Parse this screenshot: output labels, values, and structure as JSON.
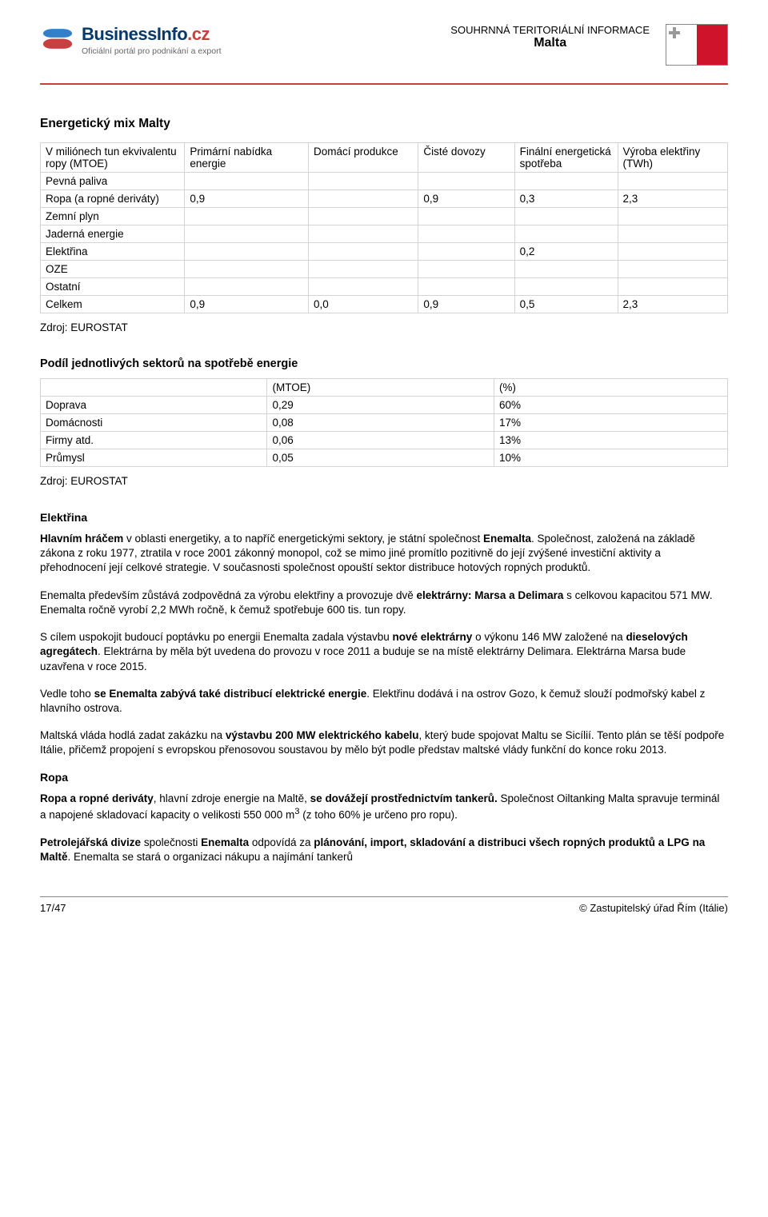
{
  "header": {
    "logo_main": "BusinessInfo",
    "logo_suffix": ".cz",
    "logo_sub": "Oficiální portál pro podnikání a export",
    "title_line1": "SOUHRNNÁ TERITORIÁLNÍ INFORMACE",
    "title_line2": "Malta",
    "flag_colors": {
      "left": "#ffffff",
      "right": "#ce132a",
      "cross": "#999999"
    }
  },
  "section1": {
    "title": "Energetický mix Malty",
    "table": {
      "columns": [
        "V miliónech tun ekvivalentu ropy (MTOE)",
        "Primární nabídka energie",
        "Domácí produkce",
        "Čisté dovozy",
        "Finální energetická spotřeba",
        "Výroba elektřiny (TWh)"
      ],
      "rows": [
        [
          "Pevná paliva",
          "",
          "",
          "",
          "",
          ""
        ],
        [
          "Ropa (a ropné deriváty)",
          "0,9",
          "",
          "0,9",
          "0,3",
          "2,3"
        ],
        [
          "Zemní plyn",
          "",
          "",
          "",
          "",
          ""
        ],
        [
          "Jaderná energie",
          "",
          "",
          "",
          "",
          ""
        ],
        [
          "Elektřina",
          "",
          "",
          "",
          "0,2",
          ""
        ],
        [
          "OZE",
          "",
          "",
          "",
          "",
          ""
        ],
        [
          "Ostatní",
          "",
          "",
          "",
          "",
          ""
        ],
        [
          "Celkem",
          "0,9",
          "0,0",
          "0,9",
          "0,5",
          "2,3"
        ]
      ],
      "col_widths": [
        "21%",
        "18%",
        "16%",
        "14%",
        "15%",
        "16%"
      ]
    },
    "source": "Zdroj: EUROSTAT"
  },
  "section2": {
    "title": "Podíl jednotlivých sektorů na spotřebě energie",
    "table": {
      "columns": [
        "",
        "(MTOE)",
        "(%)"
      ],
      "rows": [
        [
          "Doprava",
          "0,29",
          "60%"
        ],
        [
          "Domácnosti",
          "0,08",
          "17%"
        ],
        [
          "Firmy atd.",
          "0,06",
          "13%"
        ],
        [
          "Průmysl",
          "0,05",
          "10%"
        ]
      ],
      "col_widths": [
        "33%",
        "33%",
        "34%"
      ]
    },
    "source": "Zdroj: EUROSTAT"
  },
  "elektrina": {
    "heading": "Elektřina",
    "p1_parts": [
      {
        "bold": true,
        "text": "Hlavním hráčem"
      },
      {
        "bold": false,
        "text": " v oblasti energetiky, a to napříč energetickými sektory,  je státní společnost "
      },
      {
        "bold": true,
        "text": "Enemalta"
      },
      {
        "bold": false,
        "text": ". Společnost, založená na základě zákona z roku 1977, ztratila v roce 2001 zákonný monopol, což se mimo jiné promítlo pozitivně do její zvýšené investiční aktivity a přehodnocení její celkové strategie. V současnosti společnost opouští sektor distribuce hotových ropných produktů."
      }
    ],
    "p2_parts": [
      {
        "bold": false,
        "text": "Enemalta především zůstává zodpovědná za výrobu elektřiny a provozuje dvě "
      },
      {
        "bold": true,
        "text": "elektrárny: Marsa a Delimara"
      },
      {
        "bold": false,
        "text": " s celkovou kapacitou 571 MW. Enemalta ročně vyrobí 2,2 MWh ročně, k čemuž  spotřebuje 600 tis. tun ropy."
      }
    ],
    "p3_parts": [
      {
        "bold": false,
        "text": "S cílem uspokojit budoucí poptávku po energii Enemalta zadala výstavbu "
      },
      {
        "bold": true,
        "text": "nové elektrárny"
      },
      {
        "bold": false,
        "text": " o výkonu 146 MW založené na "
      },
      {
        "bold": true,
        "text": "dieselových agregátech"
      },
      {
        "bold": false,
        "text": ". Elektrárna by měla být uvedena do provozu v roce 2011 a buduje se na místě elektrárny Delimara. Elektrárna Marsa bude uzavřena v roce 2015."
      }
    ],
    "p4_parts": [
      {
        "bold": false,
        "text": "Vedle toho "
      },
      {
        "bold": true,
        "text": "se Enemalta zabývá také distribucí elektrické energie"
      },
      {
        "bold": false,
        "text": ". Elektřinu dodává i na ostrov Gozo, k čemuž slouží podmořský kabel z hlavního ostrova."
      }
    ],
    "p5_parts": [
      {
        "bold": false,
        "text": "Maltská vláda hodlá zadat zakázku na "
      },
      {
        "bold": true,
        "text": "výstavbu 200 MW elektrického kabelu"
      },
      {
        "bold": false,
        "text": ", který bude spojovat Maltu se Sicílií. Tento plán se těší podpoře Itálie, přičemž propojení s evropskou přenosovou soustavou by mělo být podle představ maltské vlády funkční do konce roku 2013."
      }
    ]
  },
  "ropa": {
    "heading": "Ropa",
    "p1_parts": [
      {
        "bold": true,
        "text": "Ropa a ropné deriváty"
      },
      {
        "bold": false,
        "text": ", hlavní zdroje energie na Maltě, "
      },
      {
        "bold": true,
        "text": "se dovážejí prostřednictvím tankerů."
      },
      {
        "bold": false,
        "text": " Společnost Oiltanking Malta spravuje terminál a napojené skladovací kapacity o velikosti 550 000 m"
      },
      {
        "sup": true,
        "text": "3"
      },
      {
        "bold": false,
        "text": " (z toho 60% je určeno pro ropu)."
      }
    ],
    "p2_parts": [
      {
        "bold": true,
        "text": "Petrolejářská divize"
      },
      {
        "bold": false,
        "text": " společnosti "
      },
      {
        "bold": true,
        "text": "Enemalta"
      },
      {
        "bold": false,
        "text": " odpovídá za "
      },
      {
        "bold": true,
        "text": "plánování, import, skladování a distribuci všech ropných produktů a LPG na Maltě"
      },
      {
        "bold": false,
        "text": ". Enemalta se stará o organizaci nákupu a najímání tankerů"
      }
    ]
  },
  "footer": {
    "left": "17/47",
    "right": "© Zastupitelský úřad Řím (Itálie)"
  },
  "colors": {
    "rule": "#c83f3f",
    "table_border": "#d4d4d4",
    "logo_blue": "#05396b",
    "logo_red": "#c83f3f"
  }
}
